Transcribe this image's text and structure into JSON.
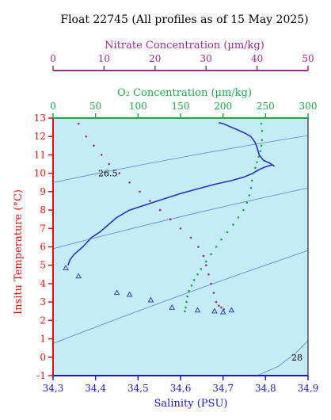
{
  "chart_data": {
    "type": "scatter",
    "title": "Float 22745  (All profiles as of 15 May 2025)",
    "xlabel": "Salinity (PSU)",
    "ylabel": "Insitu Temperature (°C)",
    "xlim": [
      34.3,
      34.9
    ],
    "ylim": [
      -1,
      13
    ],
    "x_ticks": [
      "34,3",
      "34,4",
      "34,5",
      "34,6",
      "34,7",
      "34,8",
      "34,9"
    ],
    "y_ticks": [
      "-1",
      "0",
      "1",
      "2",
      "3",
      "4",
      "5",
      "6",
      "7",
      "8",
      "9",
      "10",
      "11",
      "12",
      "13"
    ],
    "o2_axis": {
      "label": "O₂ Concentration (µm/kg)",
      "range": [
        0,
        300
      ],
      "ticks": [
        "0",
        "50",
        "100",
        "150",
        "200",
        "250",
        "300"
      ]
    },
    "nitrate_axis": {
      "label": "Nitrate Concentration (µm/kg)",
      "range": [
        0,
        50
      ],
      "ticks": [
        "0",
        "10",
        "20",
        "30",
        "40",
        "50"
      ]
    },
    "density_labels": [
      "26.5",
      "28"
    ],
    "grid": false,
    "colors": {
      "background": "#c3ecf7",
      "salinity": "#2e2ec8",
      "oxygen": "#1aa84a",
      "nitrate": "#9c2890",
      "temperature_axis": "#e01010",
      "salinity_axis": "#1818c8",
      "isopycnal": "#6f8ae6"
    },
    "series": [
      {
        "kind": "line",
        "axis": "salinity",
        "x": [
          34.335,
          34.34,
          34.35,
          34.37,
          34.39,
          34.41,
          34.43,
          34.45,
          34.48,
          34.52,
          34.56,
          34.6,
          34.64,
          34.68,
          34.72,
          34.75,
          34.77,
          34.785,
          34.8,
          34.815,
          34.82,
          34.81,
          34.795,
          34.785,
          34.78,
          34.775,
          34.765,
          34.75,
          34.73,
          34.71,
          34.7,
          34.69
        ],
        "y": [
          5.0,
          5.3,
          5.6,
          6.0,
          6.5,
          6.8,
          7.2,
          7.6,
          8.0,
          8.3,
          8.6,
          8.9,
          9.15,
          9.4,
          9.6,
          9.8,
          10.0,
          10.2,
          10.35,
          10.45,
          10.4,
          10.55,
          10.7,
          11.0,
          11.4,
          11.7,
          12.0,
          12.2,
          12.4,
          12.6,
          12.7,
          12.75
        ]
      },
      {
        "kind": "markers",
        "axis": "salinity",
        "x": [
          34.33,
          34.36,
          34.45,
          34.48,
          34.53,
          34.58,
          34.64,
          34.68,
          34.7,
          34.72
        ],
        "y": [
          4.85,
          4.4,
          3.5,
          3.4,
          3.1,
          2.7,
          2.55,
          2.5,
          2.45,
          2.55
        ]
      },
      {
        "kind": "markers",
        "axis": "oxygen",
        "x": [
          155,
          156,
          157,
          158,
          160,
          163,
          166,
          170,
          174,
          180,
          186,
          192,
          198,
          205,
          212,
          218,
          224,
          228,
          231,
          233,
          234,
          236,
          238,
          240,
          242,
          244,
          245,
          246,
          246,
          245
        ],
        "y": [
          2.5,
          2.7,
          3.0,
          3.3,
          3.6,
          3.9,
          4.2,
          4.5,
          4.8,
          5.2,
          5.6,
          6.0,
          6.4,
          6.8,
          7.2,
          7.6,
          8.0,
          8.4,
          8.8,
          9.2,
          9.6,
          10.0,
          10.3,
          10.6,
          10.9,
          11.2,
          11.5,
          11.8,
          12.3,
          12.7
        ]
      },
      {
        "kind": "markers",
        "axis": "nitrate",
        "x": [
          5.0,
          6.5,
          8.0,
          9.5,
          11.0,
          13.0,
          15.0,
          17.0,
          19.0,
          21.0,
          23.0,
          25.0,
          27.0,
          28.5,
          29.5,
          30.0,
          30.5,
          31.0,
          31.5,
          32.0,
          32.5,
          33.0,
          33.5
        ],
        "y": [
          12.7,
          12.0,
          11.5,
          11.0,
          10.5,
          10.0,
          9.5,
          9.0,
          8.5,
          8.0,
          7.5,
          7.0,
          6.5,
          6.0,
          5.5,
          5.0,
          4.5,
          4.0,
          3.5,
          3.0,
          2.8,
          2.7,
          2.6
        ]
      },
      {
        "kind": "isopycnal",
        "label": "26.5",
        "x": [
          34.3,
          34.9
        ],
        "y": [
          9.5,
          12.05
        ]
      },
      {
        "kind": "isopycnal",
        "x": [
          34.3,
          34.9
        ],
        "y": [
          5.9,
          9.2
        ]
      },
      {
        "kind": "isopycnal",
        "x": [
          34.3,
          34.9
        ],
        "y": [
          0.75,
          5.8
        ]
      },
      {
        "kind": "isopycnal",
        "label": "28",
        "x": [
          34.78,
          34.83,
          34.87,
          34.9
        ],
        "y": [
          -1.0,
          -0.5,
          0.2,
          0.9
        ]
      }
    ]
  }
}
